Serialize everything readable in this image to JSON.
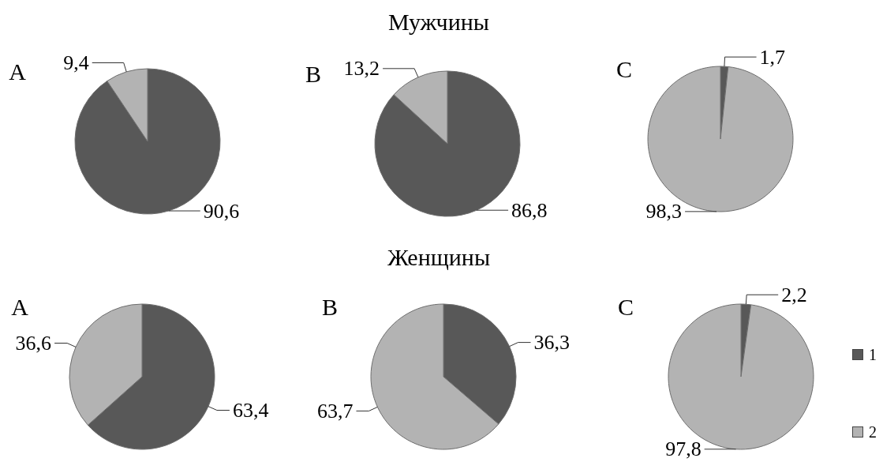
{
  "chart_data": [
    {
      "type": "pie",
      "title": "A",
      "annotations": [
        "Мужчины"
      ],
      "categories": [
        null,
        null
      ],
      "values": [
        90.6,
        9.4
      ],
      "colors": [
        "#585858",
        "#b3b3b3"
      ],
      "value_labels": [
        "90,6",
        "9,4"
      ]
    },
    {
      "type": "pie",
      "title": "B",
      "categories": [
        null,
        null
      ],
      "values": [
        86.8,
        13.2
      ],
      "colors": [
        "#585858",
        "#b3b3b3"
      ],
      "value_labels": [
        "86,8",
        "13,2"
      ]
    },
    {
      "type": "pie",
      "title": "C",
      "categories": [
        null,
        null
      ],
      "values": [
        1.7,
        98.3
      ],
      "colors": [
        "#585858",
        "#b3b3b3"
      ],
      "value_labels": [
        "1,7",
        "98,3"
      ]
    },
    {
      "type": "pie",
      "title": "A",
      "annotations": [
        "Женщины"
      ],
      "categories": [
        null,
        null
      ],
      "values": [
        63.4,
        36.6
      ],
      "colors": [
        "#585858",
        "#b3b3b3"
      ],
      "value_labels": [
        "63,4",
        "36,6"
      ]
    },
    {
      "type": "pie",
      "title": "B",
      "categories": [
        null,
        null
      ],
      "values": [
        36.3,
        63.7
      ],
      "colors": [
        "#585858",
        "#b3b3b3"
      ],
      "value_labels": [
        "36,3",
        "63,7"
      ]
    },
    {
      "type": "pie",
      "title": "C",
      "categories": [
        "1",
        "2"
      ],
      "values": [
        2.2,
        97.8
      ],
      "colors": [
        "#585858",
        "#b3b3b3"
      ],
      "value_labels": [
        "2,2",
        "97,8"
      ],
      "legend": "right"
    }
  ]
}
